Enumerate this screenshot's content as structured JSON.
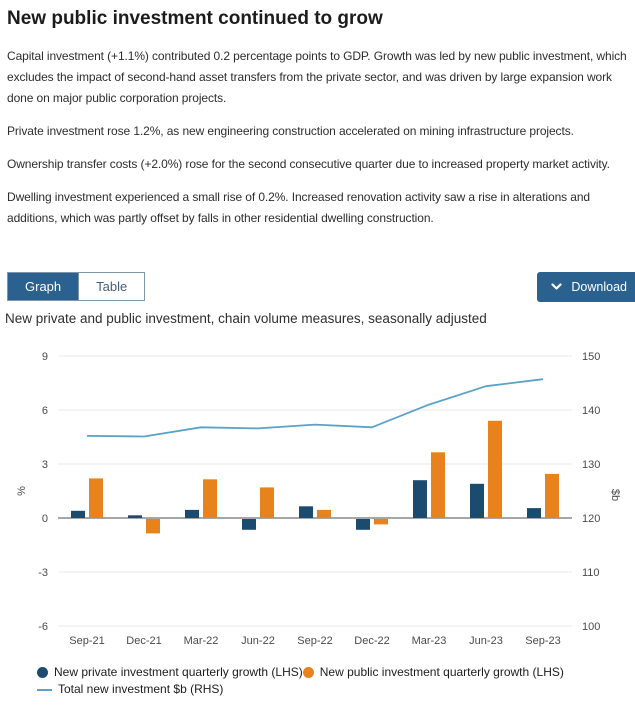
{
  "page": {
    "title": "New public investment continued to grow",
    "paragraphs": [
      "Capital investment (+1.1%) contributed 0.2 percentage points to GDP. Growth was led by new public investment, which excludes the impact of second-hand asset transfers from the private sector, and was driven by large expansion work done on major public corporation projects.",
      "Private investment rose 1.2%, as new engineering construction accelerated on mining infrastructure projects.",
      "Ownership transfer costs (+2.0%) rose for the second consecutive quarter due to increased property market activity.",
      "Dwelling investment experienced a small rise of 0.2%. Increased renovation activity saw a rise in alterations and additions, which was partly offset by falls in other residential dwelling construction."
    ]
  },
  "toolbar": {
    "graph_tab": "Graph",
    "table_tab": "Table",
    "download_label": "Download",
    "download_icon": "chevron-down-icon"
  },
  "chart_title": "New private and public investment, chain volume measures, seasonally adjusted",
  "chart_data": {
    "type": "bar",
    "subtype": "grouped bars with overlaid line, dual axis",
    "categories": [
      "Sep-21",
      "Dec-21",
      "Mar-22",
      "Jun-22",
      "Sep-22",
      "Dec-22",
      "Mar-23",
      "Jun-23",
      "Sep-23"
    ],
    "series": [
      {
        "name": "New private investment quarterly growth (LHS)",
        "type": "bar",
        "axis": "left",
        "color": "#1b4c70",
        "values": [
          0.4,
          0.15,
          0.45,
          -0.6,
          0.65,
          -0.6,
          2.1,
          1.9,
          0.55
        ]
      },
      {
        "name": "New public investment quarterly growth (LHS)",
        "type": "bar",
        "axis": "left",
        "color": "#e8821d",
        "values": [
          2.2,
          -0.8,
          2.15,
          1.7,
          0.45,
          -0.3,
          3.65,
          5.4,
          2.45
        ]
      },
      {
        "name": "Total new investment $b (RHS)",
        "type": "line",
        "axis": "right",
        "color": "#5aa2c7",
        "values": [
          135.2,
          135.1,
          136.8,
          136.6,
          137.3,
          136.8,
          141.0,
          144.4,
          145.7
        ]
      }
    ],
    "left_axis": {
      "label": "%",
      "ticks": [
        9,
        6,
        3,
        0,
        -3,
        -6
      ],
      "min": -6,
      "max": 9
    },
    "right_axis": {
      "label": "$b",
      "ticks": [
        150,
        140,
        130,
        120,
        110,
        100
      ],
      "min": 100,
      "max": 150
    },
    "grid": true,
    "legend_position": "bottom",
    "colors": {
      "zero_line": "#a6a6a6",
      "grid_line": "#e9e9e9",
      "tick_text": "#4a4a4a"
    }
  }
}
